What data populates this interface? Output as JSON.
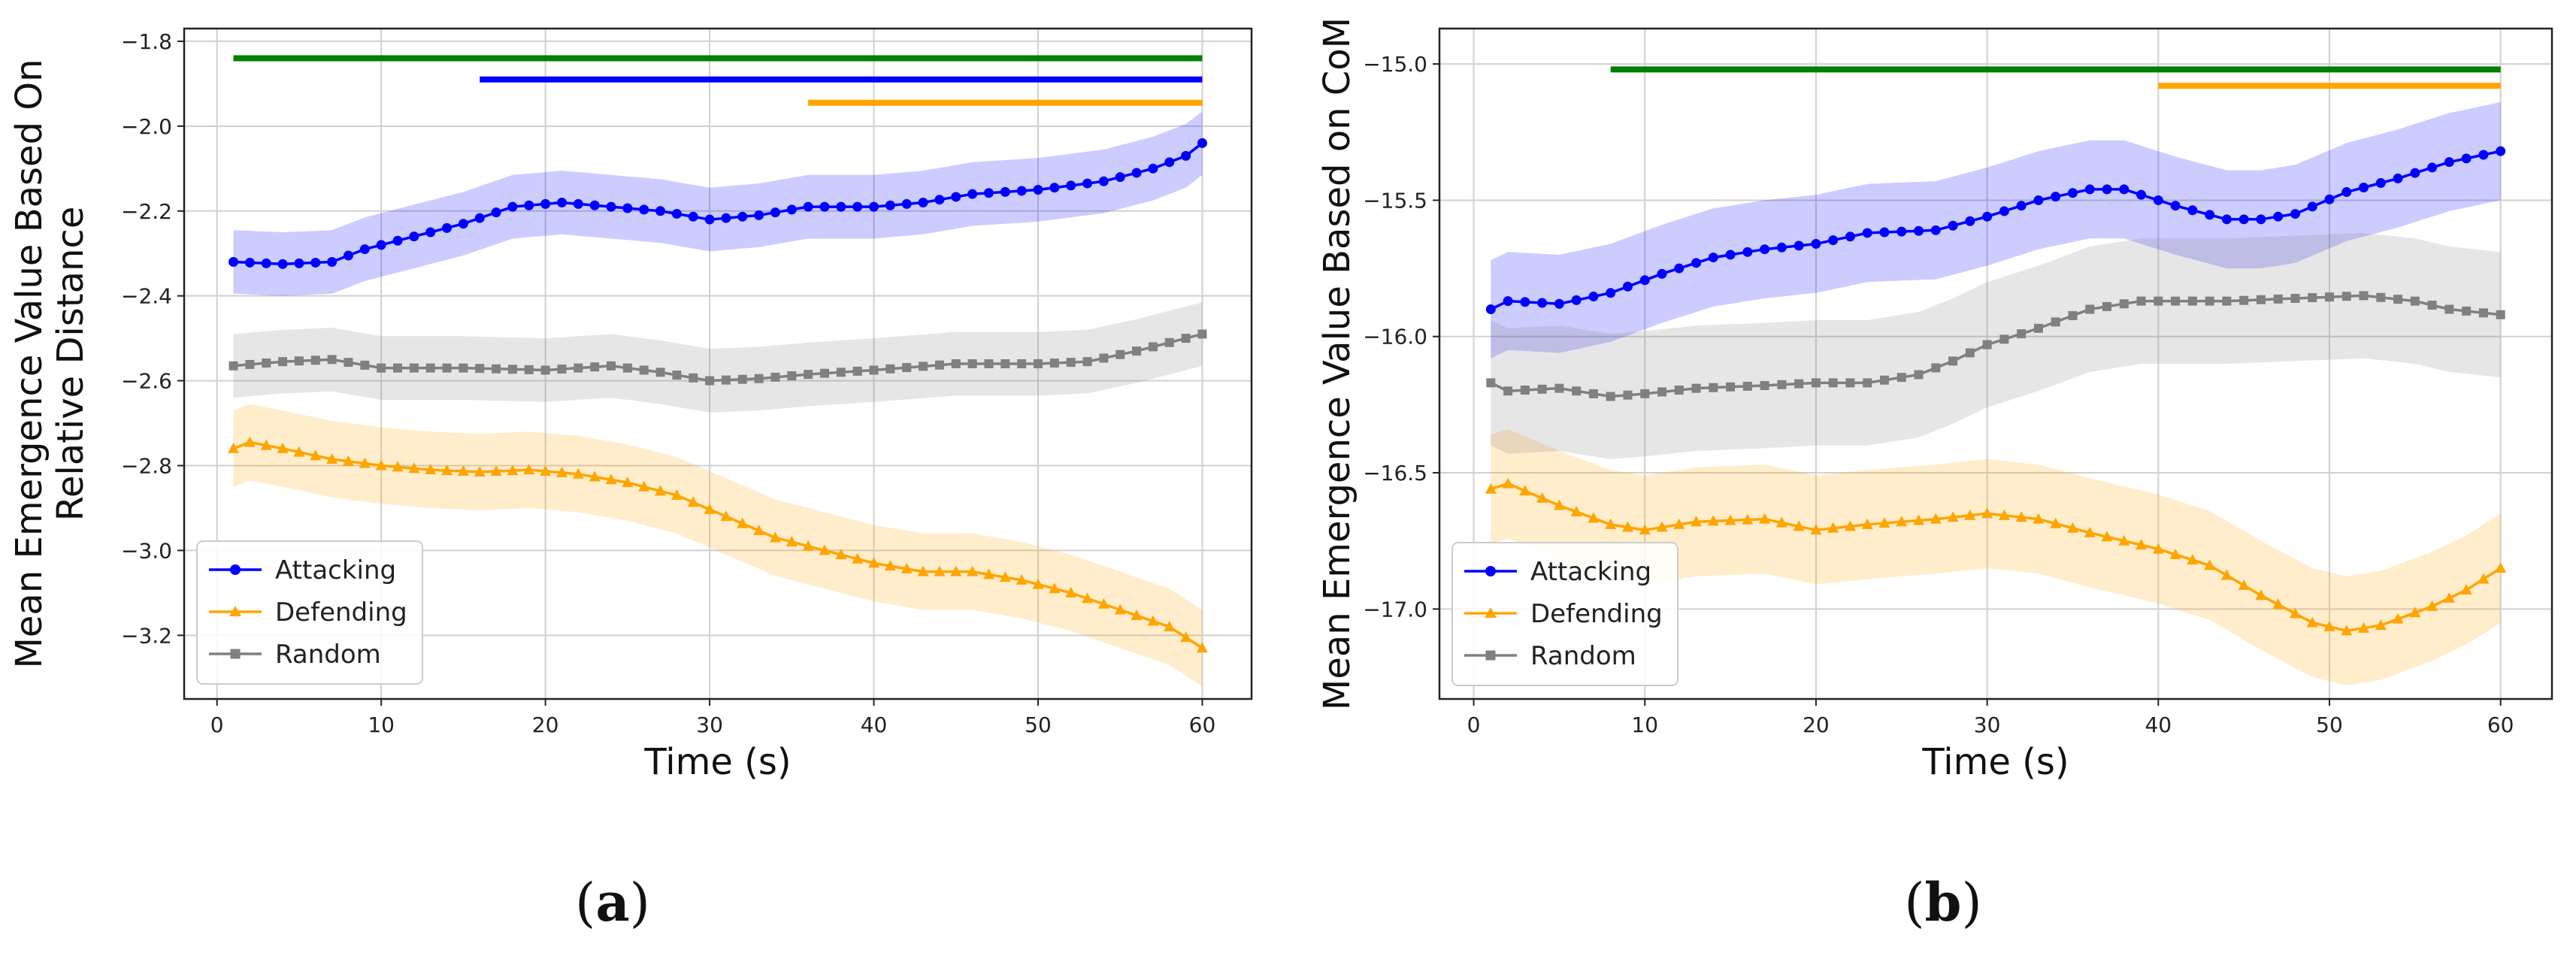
{
  "chart_data": [
    {
      "type": "line",
      "panel_label_open": "(",
      "panel_label": "a",
      "panel_label_close": ")",
      "title": "",
      "xlabel": "Time (s)",
      "ylabel_lines": [
        "Mean Emergence Value Based On",
        "Relative Distance"
      ],
      "xlim": [
        -2,
        63
      ],
      "ylim": [
        -3.35,
        -1.77
      ],
      "xticks": [
        0,
        10,
        20,
        30,
        40,
        50,
        60
      ],
      "yticks": [
        -3.2,
        -3.0,
        -2.8,
        -2.6,
        -2.4,
        -2.2,
        -2.0,
        -1.8
      ],
      "xtick_labels": [
        "0",
        "10",
        "20",
        "30",
        "40",
        "50",
        "60"
      ],
      "ytick_labels": [
        "−3.2",
        "−3.0",
        "−2.8",
        "−2.6",
        "−2.4",
        "−2.2",
        "−2.0",
        "−1.8"
      ],
      "grid": true,
      "legend": "lower-left",
      "series": [
        {
          "name": "Attacking",
          "color": "#0000ff",
          "marker": "circle",
          "band_half_width": 0.075,
          "keypoints": [
            [
              1,
              -2.32
            ],
            [
              4,
              -2.325
            ],
            [
              7,
              -2.32
            ],
            [
              9,
              -2.29
            ],
            [
              12,
              -2.26
            ],
            [
              15,
              -2.23
            ],
            [
              18,
              -2.19
            ],
            [
              21,
              -2.18
            ],
            [
              24,
              -2.19
            ],
            [
              27,
              -2.2
            ],
            [
              30,
              -2.22
            ],
            [
              33,
              -2.21
            ],
            [
              36,
              -2.19
            ],
            [
              40,
              -2.19
            ],
            [
              43,
              -2.18
            ],
            [
              46,
              -2.16
            ],
            [
              50,
              -2.15
            ],
            [
              54,
              -2.13
            ],
            [
              57,
              -2.1
            ],
            [
              59,
              -2.07
            ],
            [
              60,
              -2.04
            ]
          ]
        },
        {
          "name": "Defending",
          "color": "#ffa500",
          "marker": "triangle",
          "band_half_width": 0.09,
          "keypoints": [
            [
              1,
              -2.76
            ],
            [
              2,
              -2.745
            ],
            [
              4,
              -2.76
            ],
            [
              7,
              -2.785
            ],
            [
              10,
              -2.8
            ],
            [
              13,
              -2.81
            ],
            [
              16,
              -2.815
            ],
            [
              19,
              -2.81
            ],
            [
              22,
              -2.82
            ],
            [
              25,
              -2.84
            ],
            [
              28,
              -2.87
            ],
            [
              31,
              -2.92
            ],
            [
              34,
              -2.97
            ],
            [
              37,
              -3.0
            ],
            [
              40,
              -3.03
            ],
            [
              43,
              -3.05
            ],
            [
              46,
              -3.05
            ],
            [
              49,
              -3.07
            ],
            [
              52,
              -3.1
            ],
            [
              55,
              -3.14
            ],
            [
              58,
              -3.18
            ],
            [
              60,
              -3.23
            ]
          ]
        },
        {
          "name": "Random",
          "color": "#808080",
          "marker": "square",
          "band_half_width": 0.075,
          "keypoints": [
            [
              1,
              -2.565
            ],
            [
              4,
              -2.555
            ],
            [
              7,
              -2.55
            ],
            [
              10,
              -2.57
            ],
            [
              15,
              -2.57
            ],
            [
              20,
              -2.575
            ],
            [
              24,
              -2.565
            ],
            [
              27,
              -2.58
            ],
            [
              30,
              -2.6
            ],
            [
              33,
              -2.595
            ],
            [
              36,
              -2.585
            ],
            [
              40,
              -2.575
            ],
            [
              45,
              -2.56
            ],
            [
              50,
              -2.56
            ],
            [
              53,
              -2.555
            ],
            [
              56,
              -2.53
            ],
            [
              59,
              -2.5
            ],
            [
              60,
              -2.49
            ]
          ]
        }
      ],
      "significance_bars": [
        {
          "color": "#008000",
          "x_start": 1,
          "x_end": 60,
          "y": -1.84
        },
        {
          "color": "#0000ff",
          "x_start": 16,
          "x_end": 60,
          "y": -1.89
        },
        {
          "color": "#ffa500",
          "x_start": 36,
          "x_end": 60,
          "y": -1.945
        }
      ]
    },
    {
      "type": "line",
      "panel_label_open": "(",
      "panel_label": "b",
      "panel_label_close": ")",
      "title": "",
      "xlabel": "Time (s)",
      "ylabel_lines": [
        "Mean Emergence Value Based on CoM"
      ],
      "xlim": [
        -2,
        63
      ],
      "ylim": [
        -17.33,
        -14.87
      ],
      "xticks": [
        0,
        10,
        20,
        30,
        40,
        50,
        60
      ],
      "yticks": [
        -17.0,
        -16.5,
        -16.0,
        -15.5,
        -15.0
      ],
      "xtick_labels": [
        "0",
        "10",
        "20",
        "30",
        "40",
        "50",
        "60"
      ],
      "ytick_labels": [
        "−17.0",
        "−16.5",
        "−16.0",
        "−15.5",
        "−15.0"
      ],
      "grid": true,
      "legend": "lower-left",
      "series": [
        {
          "name": "Attacking",
          "color": "#0000ff",
          "marker": "circle",
          "band_half_width": 0.18,
          "keypoints": [
            [
              1,
              -15.9
            ],
            [
              2,
              -15.87
            ],
            [
              5,
              -15.88
            ],
            [
              8,
              -15.84
            ],
            [
              11,
              -15.77
            ],
            [
              14,
              -15.71
            ],
            [
              17,
              -15.68
            ],
            [
              20,
              -15.66
            ],
            [
              23,
              -15.62
            ],
            [
              27,
              -15.61
            ],
            [
              30,
              -15.56
            ],
            [
              33,
              -15.5
            ],
            [
              36,
              -15.46
            ],
            [
              38,
              -15.46
            ],
            [
              41,
              -15.52
            ],
            [
              44,
              -15.57
            ],
            [
              46,
              -15.57
            ],
            [
              48,
              -15.55
            ],
            [
              51,
              -15.47
            ],
            [
              54,
              -15.42
            ],
            [
              57,
              -15.36
            ],
            [
              60,
              -15.32
            ]
          ]
        },
        {
          "name": "Defending",
          "color": "#ffa500",
          "marker": "triangle",
          "band_half_width": 0.2,
          "keypoints": [
            [
              1,
              -16.56
            ],
            [
              2,
              -16.54
            ],
            [
              5,
              -16.62
            ],
            [
              8,
              -16.69
            ],
            [
              10,
              -16.71
            ],
            [
              13,
              -16.68
            ],
            [
              17,
              -16.67
            ],
            [
              20,
              -16.71
            ],
            [
              23,
              -16.69
            ],
            [
              27,
              -16.67
            ],
            [
              30,
              -16.65
            ],
            [
              33,
              -16.67
            ],
            [
              36,
              -16.72
            ],
            [
              40,
              -16.78
            ],
            [
              43,
              -16.84
            ],
            [
              46,
              -16.95
            ],
            [
              49,
              -17.05
            ],
            [
              51,
              -17.08
            ],
            [
              53,
              -17.06
            ],
            [
              56,
              -16.99
            ],
            [
              58,
              -16.93
            ],
            [
              60,
              -16.85
            ]
          ]
        },
        {
          "name": "Random",
          "color": "#808080",
          "marker": "square",
          "band_half_width": 0.23,
          "keypoints": [
            [
              1,
              -16.17
            ],
            [
              2,
              -16.2
            ],
            [
              5,
              -16.19
            ],
            [
              8,
              -16.22
            ],
            [
              10,
              -16.21
            ],
            [
              13,
              -16.19
            ],
            [
              17,
              -16.18
            ],
            [
              20,
              -16.17
            ],
            [
              23,
              -16.17
            ],
            [
              26,
              -16.14
            ],
            [
              28,
              -16.09
            ],
            [
              30,
              -16.03
            ],
            [
              33,
              -15.97
            ],
            [
              36,
              -15.9
            ],
            [
              39,
              -15.87
            ],
            [
              44,
              -15.87
            ],
            [
              48,
              -15.86
            ],
            [
              52,
              -15.85
            ],
            [
              55,
              -15.87
            ],
            [
              57,
              -15.9
            ],
            [
              60,
              -15.92
            ]
          ]
        }
      ],
      "significance_bars": [
        {
          "color": "#008000",
          "x_start": 8,
          "x_end": 60,
          "y": -15.02
        },
        {
          "color": "#ffa500",
          "x_start": 40,
          "x_end": 60,
          "y": -15.08
        }
      ]
    }
  ]
}
